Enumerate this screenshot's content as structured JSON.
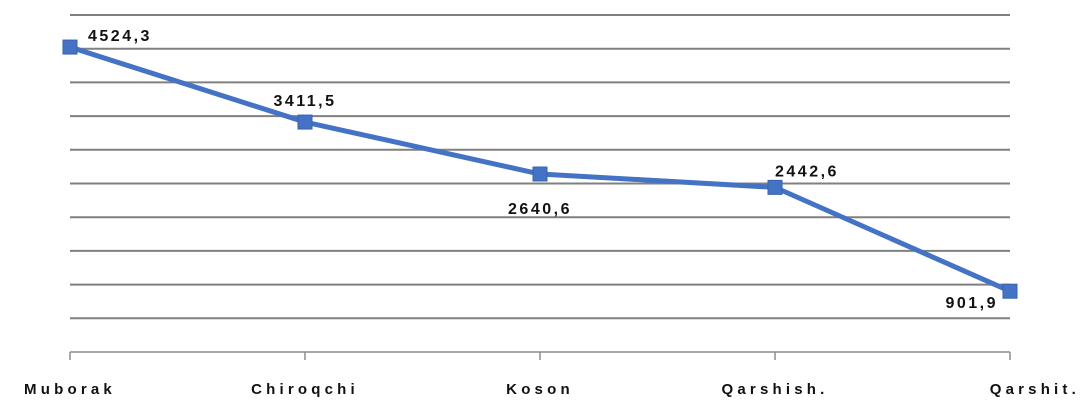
{
  "chart_data": {
    "type": "line",
    "categories": [
      "Muborak",
      "Chiroqchi",
      "Koson",
      "Qarshish.",
      "Qarshit."
    ],
    "series": [
      {
        "values": [
          4524.3,
          3411.5,
          2640.6,
          2442.6,
          901.9
        ],
        "value_labels": [
          "4524,3",
          "3411,5",
          "2640,6",
          "2442,6",
          "901,9"
        ],
        "color": "#4472C4"
      }
    ],
    "ylim": [
      0,
      5000
    ],
    "ytick_step": 500,
    "show_ytick_labels": false,
    "grid": true,
    "gridline_color": "#808080",
    "marker": "square",
    "legend": "none"
  }
}
